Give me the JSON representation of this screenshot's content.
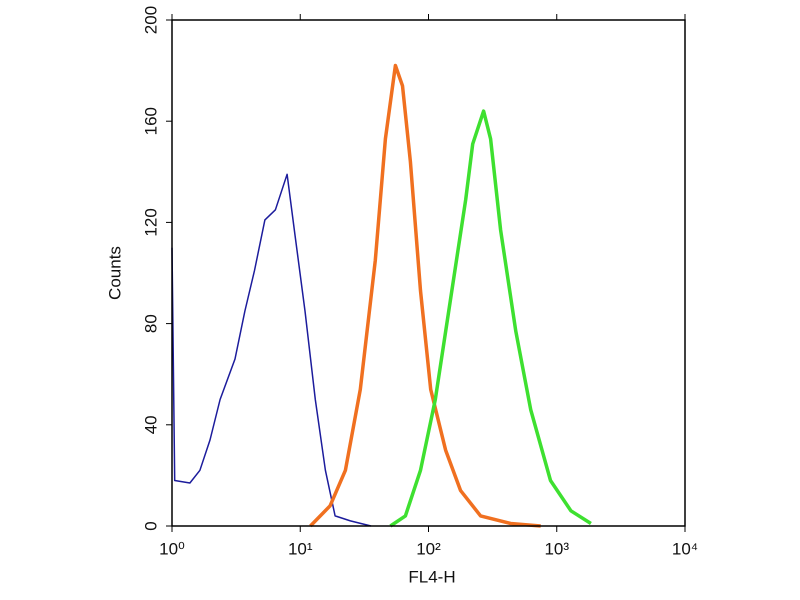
{
  "chart_data": {
    "type": "line",
    "x_label": "FL4-H",
    "y_label": "Counts",
    "log_x": true,
    "xlim": [
      1,
      10000
    ],
    "xticks": [
      {
        "value": 1,
        "label": "10⁰"
      },
      {
        "value": 10,
        "label": "10¹"
      },
      {
        "value": 100,
        "label": "10²"
      },
      {
        "value": 1000,
        "label": "10³"
      },
      {
        "value": 10000,
        "label": "10⁴"
      }
    ],
    "ylim": [
      0,
      200
    ],
    "yticks": [
      0,
      40,
      80,
      120,
      160,
      200
    ],
    "series": [
      {
        "color": "#1c1c9c",
        "width": 1.5,
        "x": [
          1,
          1.05,
          1.38,
          1.65,
          1.98,
          2.37,
          3.1,
          3.7,
          4.4,
          5.3,
          6.4,
          7.9,
          9.1,
          10.9,
          13.1,
          15.7,
          18.7,
          24.6,
          35.6
        ],
        "values": [
          110,
          18,
          17,
          22,
          34,
          50,
          66,
          85,
          101,
          121,
          125,
          139,
          115,
          85,
          50,
          22,
          4,
          2,
          0
        ]
      },
      {
        "color": "#f07020",
        "width": 3.5,
        "x": [
          12,
          17.1,
          22.5,
          29.4,
          38.5,
          46.1,
          55.2,
          62.7,
          72.3,
          86.6,
          104,
          136,
          178,
          255,
          437,
          750
        ],
        "values": [
          0,
          8,
          22,
          54,
          105,
          153,
          182,
          174,
          144,
          93,
          54,
          30,
          14,
          4,
          1,
          0
        ]
      },
      {
        "color": "#3ee030",
        "width": 3.5,
        "x": [
          50.5,
          66,
          86.6,
          113,
          148,
          195,
          221,
          269,
          305,
          365,
          479,
          626,
          894,
          1289,
          1845
        ],
        "values": [
          0,
          4,
          22,
          50,
          89,
          129,
          151,
          164,
          153,
          117,
          77,
          46,
          18,
          6,
          1
        ]
      }
    ]
  }
}
